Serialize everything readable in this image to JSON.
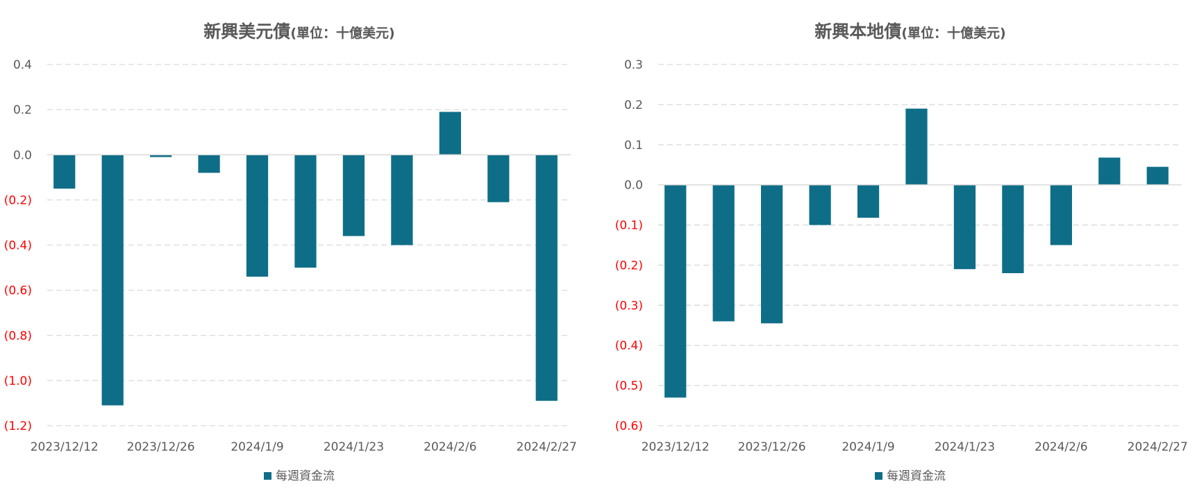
{
  "colors": {
    "bar": "#0f6e87",
    "negative_label": "#ff0000",
    "positive_label": "#595959",
    "grid": "#d9d9d9",
    "zero_line": "#d9d9d9"
  },
  "chart_data": [
    {
      "type": "bar",
      "title": "新興美元債",
      "subtitle": "(單位：十億美元)",
      "legend": "每週資金流",
      "legend_position": "bottom",
      "grid": true,
      "ylim": [
        -1.2,
        0.4
      ],
      "yticks": [
        0.4,
        0.2,
        0.0,
        -0.2,
        -0.4,
        -0.6,
        -0.8,
        -1.0,
        -1.2
      ],
      "ytick_labels": [
        "0.4",
        "0.2",
        "0.0",
        "(0.2)",
        "(0.4)",
        "(0.6)",
        "(0.8)",
        "(1.0)",
        "(1.2)"
      ],
      "xtick_labels": [
        "2023/12/12",
        "2023/12/26",
        "2024/1/9",
        "2024/1/23",
        "2024/2/6",
        "2024/2/27"
      ],
      "values": [
        -0.15,
        -1.11,
        -0.01,
        -0.08,
        -0.54,
        -0.5,
        -0.36,
        -0.4,
        0.19,
        -0.21,
        -1.09
      ]
    },
    {
      "type": "bar",
      "title": "新興本地債",
      "subtitle": "(單位：十億美元)",
      "legend": "每週資金流",
      "legend_position": "bottom",
      "grid": true,
      "ylim": [
        -0.6,
        0.3
      ],
      "yticks": [
        0.3,
        0.2,
        0.1,
        0.0,
        -0.1,
        -0.2,
        -0.3,
        -0.4,
        -0.5,
        -0.6
      ],
      "ytick_labels": [
        "0.3",
        "0.2",
        "0.1",
        "0.0",
        "(0.1)",
        "(0.2)",
        "(0.3)",
        "(0.4)",
        "(0.5)",
        "(0.6)"
      ],
      "xtick_labels": [
        "2023/12/12",
        "2023/12/26",
        "2024/1/9",
        "2024/1/23",
        "2024/2/6",
        "2024/2/27"
      ],
      "values": [
        -0.53,
        -0.34,
        -0.345,
        -0.1,
        -0.082,
        0.19,
        -0.21,
        -0.22,
        -0.15,
        0.068,
        0.045
      ]
    }
  ]
}
